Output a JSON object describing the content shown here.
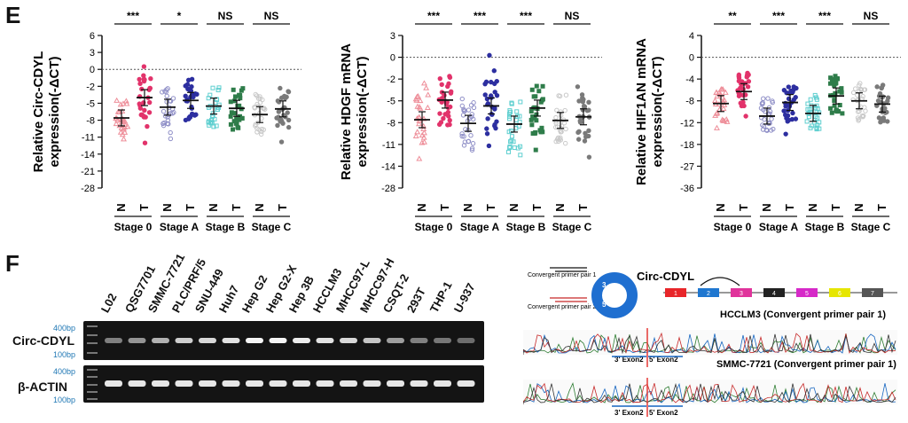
{
  "panel_e": {
    "letter": "E",
    "stage_labels": [
      "Stage 0",
      "Stage A",
      "Stage B",
      "Stage C"
    ],
    "nt_labels": [
      "N",
      "T"
    ],
    "charts": [
      {
        "ylabel_lines": [
          "Relative Circ-CDYL",
          "expression(-ΔCT)"
        ],
        "ticks": [
          "6",
          "3",
          "0",
          "-2",
          "-5",
          "-8",
          "-11",
          "-14",
          "-21",
          "-28"
        ],
        "sig": [
          "***",
          "*",
          "NS",
          "NS"
        ],
        "means": [
          [
            -7.6,
            -4.0
          ],
          [
            -5.7,
            -4.5
          ],
          [
            -5.5,
            -5.9
          ],
          [
            -7.0,
            -6.0
          ]
        ]
      },
      {
        "ylabel_lines": [
          "Relative HDGF mRNA",
          "expression(-ΔCT)"
        ],
        "ticks": [
          "3",
          "0",
          "-2",
          "-5",
          "-8",
          "-11",
          "-14",
          "-28"
        ],
        "sig": [
          "***",
          "***",
          "***",
          "NS"
        ],
        "means": [
          [
            -7.6,
            -4.9
          ],
          [
            -8.1,
            -5.7
          ],
          [
            -8.2,
            -6.0
          ],
          [
            -7.7,
            -7.2
          ]
        ]
      },
      {
        "ylabel_lines": [
          "Relative HIF1AN mRNA",
          "expression(-ΔCT)"
        ],
        "ticks": [
          "4",
          "0",
          "-4",
          "-8",
          "-12",
          "-18",
          "-27",
          "-36"
        ],
        "sig": [
          "**",
          "***",
          "***",
          "NS"
        ],
        "means": [
          [
            -8.5,
            -6.3
          ],
          [
            -10.8,
            -8.3
          ],
          [
            -10.3,
            -7.1
          ],
          [
            -8.0,
            -8.6
          ]
        ]
      }
    ]
  },
  "panel_f": {
    "letter": "F",
    "lanes": [
      "L02",
      "QSG7701",
      "SMMC-7721",
      "PLC/PRF/5",
      "SNU-449",
      "Huh7",
      "Hep G2",
      "Hep G2-X",
      "Hep 3B",
      "HCCLM3",
      "MHCC97-L",
      "MHCC97-H",
      "CSQT-2",
      "293T",
      "THP-1",
      "U-937"
    ],
    "band_intensity": [
      0.35,
      0.45,
      0.6,
      0.75,
      0.8,
      0.85,
      0.95,
      0.95,
      0.9,
      0.85,
      0.8,
      0.7,
      0.5,
      0.35,
      0.3,
      0.25
    ],
    "gel_rows": [
      "Circ-CDYL",
      "β-ACTIN"
    ],
    "bp_top": "400bp",
    "bp_bottom": "100bp",
    "diagram": {
      "title": "Circ-CDYL",
      "primer1": "Convergent primer pair 1",
      "primer2": "Convergent primer pair 2",
      "exons": [
        "1",
        "2",
        "3",
        "4",
        "5",
        "6",
        "7"
      ],
      "exon_colors": [
        "#e8262a",
        "#1f77d0",
        "#e0339b",
        "#222222",
        "#d629c8",
        "#e6e600",
        "#555555"
      ],
      "ring_numbers": [
        "3",
        "4",
        "5"
      ],
      "seq1_title": "HCCLM3 (Convergent primer pair 1)",
      "seq2_title": "SMMC-7721 (Convergent primer pair 1)",
      "junction_left": "3' Exon2",
      "junction_right": "5' Exon2"
    }
  }
}
